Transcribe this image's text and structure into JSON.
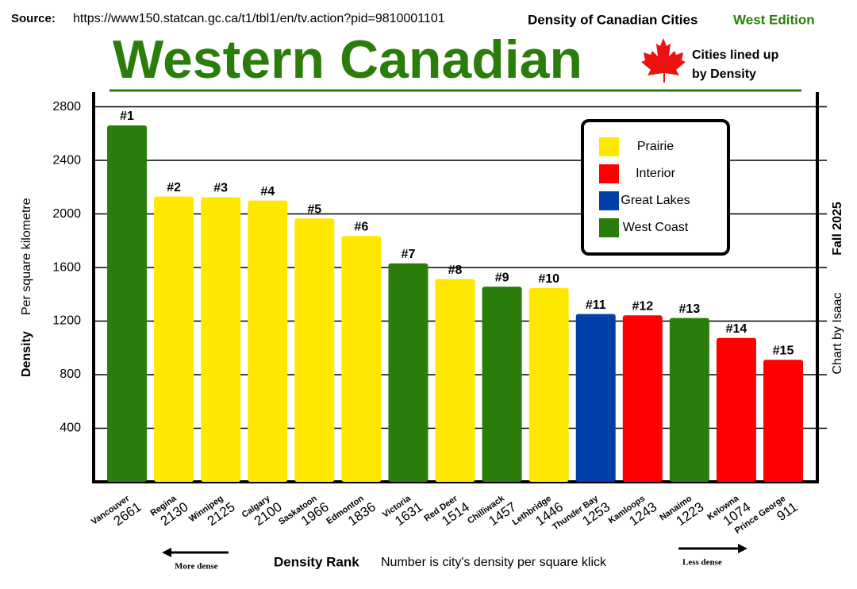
{
  "header": {
    "source_label": "Source:",
    "source_url": "https://www150.statcan.gc.ca/t1/tbl1/en/tv.action?pid=9810001101",
    "series_title": "Density of Canadian Cities",
    "edition": "West Edition"
  },
  "chart_data": {
    "type": "bar",
    "title": "Western Canadian",
    "subtitle": [
      "Cities lined up",
      "by Density"
    ],
    "side_notes": [
      "Fall 2025",
      "Chart by Isaac"
    ],
    "y_label": "Density",
    "y_sublabel": "Per square kilometre",
    "x_label": "Density Rank",
    "x_sublabel": "Number is city's density per square klick",
    "left_arrow": "More dense",
    "right_arrow": "Less dense",
    "categories": [
      "Vancouver",
      "Regina",
      "Winnipeg",
      "Calgary",
      "Saskatoon",
      "Edmonton",
      "Victoria",
      "Red Deer",
      "Chilliwack",
      "Lethbridge",
      "Thunder Bay",
      "Kamloops",
      "Nanaimo",
      "Kelowna",
      "Prince George"
    ],
    "ranks": [
      "#1",
      "#2",
      "#3",
      "#4",
      "#5",
      "#6",
      "#7",
      "#8",
      "#9",
      "#10",
      "#11",
      "#12",
      "#13",
      "#14",
      "#15"
    ],
    "series": [
      {
        "name": "Prairie",
        "color": "#ffe800",
        "values": [
          null,
          2130,
          2125,
          2100,
          1966,
          1836,
          null,
          1514,
          null,
          1446,
          null,
          null,
          null,
          null,
          null
        ]
      },
      {
        "name": "Interior",
        "color": "#ff0000",
        "values": [
          null,
          null,
          null,
          null,
          null,
          null,
          null,
          null,
          null,
          null,
          null,
          1243,
          null,
          1074,
          911
        ]
      },
      {
        "name": "Great Lakes",
        "color": "#0040a8",
        "values": [
          null,
          null,
          null,
          null,
          null,
          null,
          null,
          null,
          null,
          null,
          1253,
          null,
          null,
          null,
          null
        ]
      },
      {
        "name": "West Coast",
        "color": "#2a7d0a",
        "values": [
          2661,
          null,
          null,
          null,
          null,
          null,
          1631,
          null,
          1457,
          null,
          null,
          null,
          1223,
          null,
          null
        ]
      }
    ],
    "ylim": [
      0,
      2910
    ],
    "yticks": [
      400,
      800,
      1200,
      1600,
      2000,
      2400,
      2800
    ],
    "grid": true
  }
}
